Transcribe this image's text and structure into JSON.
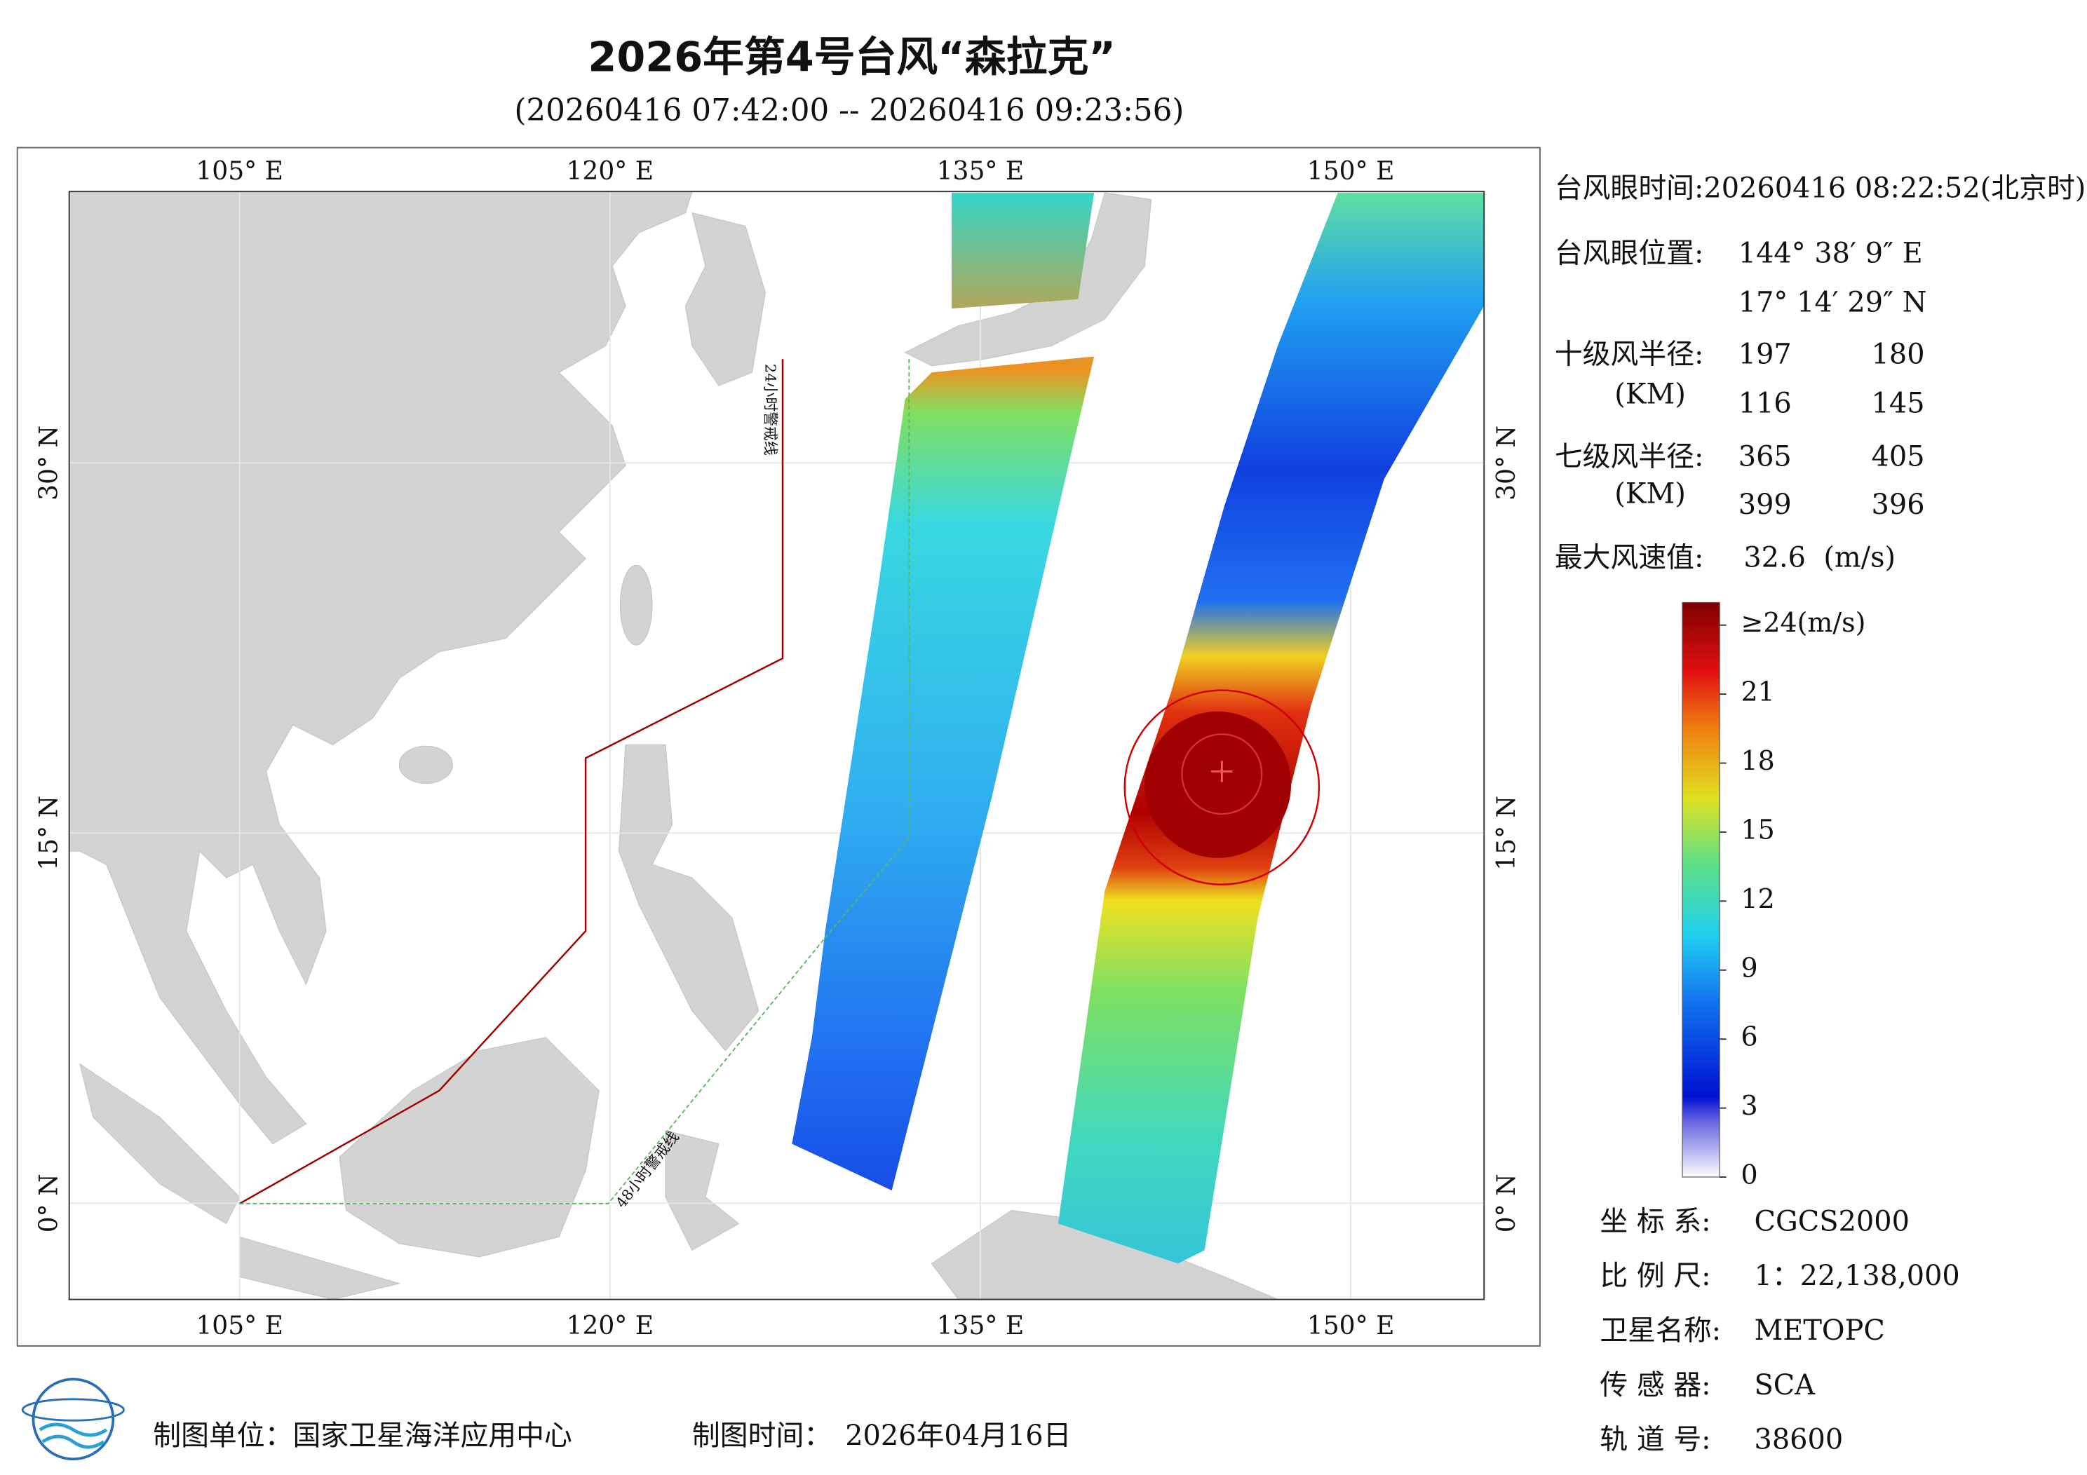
{
  "title": "2026年第4号台风“森拉克”",
  "subtitle": "(20260416 07:42:00 -- 20260416 09:23:56)",
  "map": {
    "xlim": [
      98.1,
      155.4
    ],
    "ylim": [
      -3.9,
      41.0
    ],
    "lon_ticks": [
      {
        "value": 105,
        "label": "105° E"
      },
      {
        "value": 120,
        "label": "120° E"
      },
      {
        "value": 135,
        "label": "135° E"
      },
      {
        "value": 150,
        "label": "150° E"
      }
    ],
    "lat_ticks": [
      {
        "value": 0,
        "label": "0° N"
      },
      {
        "value": 15,
        "label": "15° N"
      },
      {
        "value": 30,
        "label": "30° N"
      }
    ],
    "warning_lines": [
      "24小时警戒线",
      "48小时警戒线"
    ]
  },
  "info": {
    "eye_time": "台风眼时间:20260416 08:22:52(北京时)",
    "eye_position": {
      "label": "台风眼位置:",
      "lon": "144° 38′ 9″ E",
      "lat": "17° 14′ 29″ N"
    },
    "force10_radius": {
      "label": "十级风半径:",
      "unit": "(KM)",
      "values": [
        [
          "197",
          "180"
        ],
        [
          "116",
          "145"
        ]
      ]
    },
    "force7_radius": {
      "label": "七级风半径:",
      "unit": "(KM)",
      "values": [
        [
          "365",
          "405"
        ],
        [
          "399",
          "396"
        ]
      ]
    },
    "max_wind": {
      "label": "最大风速值:",
      "value": "32.6  (m/s)"
    }
  },
  "colorbar": {
    "range": [
      0,
      24
    ],
    "ticks": [
      {
        "value": 24,
        "label": "≥24(m/s)"
      },
      21,
      18,
      15,
      12,
      9,
      6,
      3,
      0
    ]
  },
  "metadata": [
    {
      "label": "坐 标 系:",
      "value": "CGCS2000"
    },
    {
      "label": "比 例 尺:",
      "value": "1：22,138,000"
    },
    {
      "label": "卫星名称:",
      "value": "METOPC"
    },
    {
      "label": "传 感 器:",
      "value": "SCA"
    },
    {
      "label": "轨 道 号:",
      "value": "38600"
    }
  ],
  "footer": {
    "producer": "制图单位：国家卫星海洋应用中心",
    "date_label": "制图时间：",
    "date": "2026年04月16日"
  }
}
